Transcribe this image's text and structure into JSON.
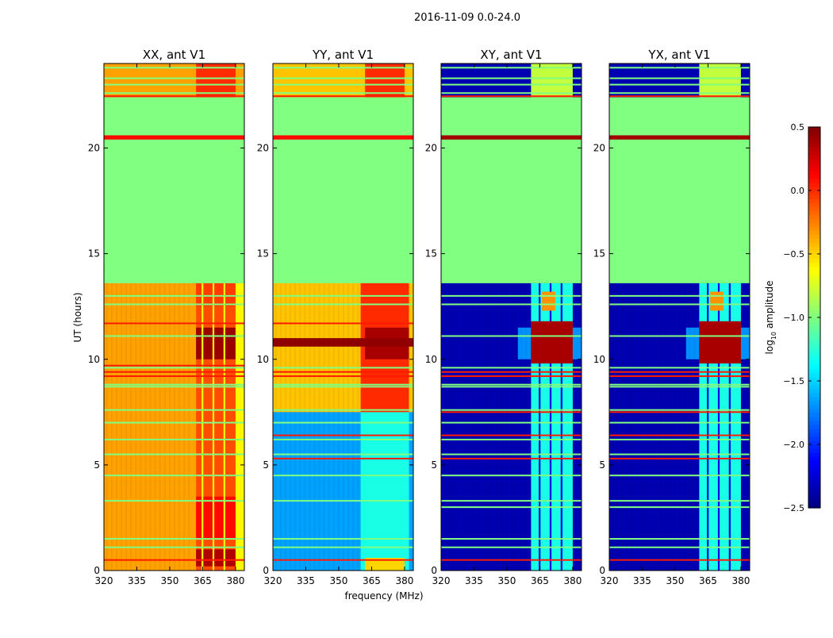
{
  "chart_data": {
    "type": "heatmap",
    "title": "2016-11-09 0.0-24.0",
    "xlabel": "frequency (MHz)",
    "ylabel": "UT (hours)",
    "xlim": [
      320,
      384
    ],
    "ylim": [
      0,
      24
    ],
    "xticks": [
      320,
      335,
      350,
      365,
      380
    ],
    "yticks": [
      0,
      5,
      10,
      15,
      20
    ],
    "colormap": "jet",
    "colorbar": {
      "label_main": "log",
      "label_sub": "10",
      "label_rest": " amplitude",
      "range": [
        -2.5,
        0.5
      ],
      "ticks": [
        0.5,
        0.0,
        -0.5,
        -1.0,
        -1.5,
        -2.0,
        -2.5
      ],
      "tick_labels": [
        "0.5",
        "0.0",
        "−0.5",
        "−1.0",
        "−1.5",
        "−2.0",
        "−2.5"
      ]
    },
    "flag_value": -1.0,
    "panels": [
      {
        "title": "XX, ant V1",
        "layers": [
          [
            0,
            24,
            320,
            384,
            -0.35
          ],
          [
            0,
            13.6,
            362,
            380,
            -0.1
          ],
          [
            0.2,
            1.0,
            362,
            380,
            0.35
          ],
          [
            1.5,
            3.5,
            362,
            380,
            0.1
          ],
          [
            10,
            11.5,
            362,
            380,
            0.42
          ],
          [
            12.5,
            13.6,
            362,
            380,
            -0.05
          ],
          [
            0,
            13.6,
            380,
            384,
            -0.6
          ],
          [
            0,
            13.6,
            364.5,
            365.3,
            -0.6
          ],
          [
            0,
            13.6,
            369.5,
            370.3,
            -0.6
          ],
          [
            0,
            13.6,
            374.5,
            375.3,
            -0.6
          ],
          [
            22.4,
            24,
            362,
            380,
            0.0
          ],
          [
            13.6,
            22.4,
            320,
            384,
            -1.0
          ],
          [
            20.4,
            20.6,
            320,
            384,
            0.1
          ]
        ],
        "green_lines": [
          1.1,
          1.5,
          3.3,
          4.5,
          5.5,
          6.2,
          7.0,
          7.6,
          8.7,
          8.8,
          9.6,
          11.1,
          12.6,
          13.0,
          22.6,
          23.0,
          23.3,
          23.8
        ],
        "red_lines": [
          0.5,
          9.2,
          9.4,
          9.7,
          11.7,
          22.45
        ]
      },
      {
        "title": "YY, ant V1",
        "layers": [
          [
            0,
            24,
            320,
            384,
            -0.45
          ],
          [
            0,
            7.5,
            320,
            384,
            -1.65
          ],
          [
            0,
            7.5,
            360,
            382,
            -1.3
          ],
          [
            0,
            0.6,
            362,
            380,
            -0.5
          ],
          [
            7.5,
            13.6,
            360,
            382,
            0.0
          ],
          [
            10,
            11.5,
            362,
            382,
            0.38
          ],
          [
            10.6,
            11.0,
            320,
            384,
            0.45
          ],
          [
            22.4,
            24,
            362,
            380,
            0.0
          ],
          [
            13.6,
            22.4,
            320,
            384,
            -1.0
          ],
          [
            20.4,
            20.6,
            320,
            384,
            0.1
          ]
        ],
        "green_lines": [
          1.1,
          1.5,
          3.3,
          4.5,
          5.5,
          6.2,
          7.0,
          7.6,
          8.7,
          8.8,
          9.6,
          12.6,
          13.0,
          22.6,
          23.0,
          23.3,
          23.8
        ],
        "red_lines": [
          0.5,
          5.3,
          6.4,
          9.2,
          9.4,
          11.7,
          22.45
        ]
      },
      {
        "title": "XY, ant V1",
        "layers": [
          [
            0,
            24,
            320,
            384,
            -2.35
          ],
          [
            0,
            13.6,
            361,
            380,
            -1.3
          ],
          [
            0,
            13.6,
            364.5,
            365.3,
            -2.2
          ],
          [
            0,
            13.6,
            369.5,
            370.3,
            -2.2
          ],
          [
            0,
            13.6,
            374.5,
            375.3,
            -2.2
          ],
          [
            10,
            11.5,
            355,
            361,
            -1.7
          ],
          [
            10,
            11.5,
            380,
            384,
            -1.7
          ],
          [
            9.8,
            11.8,
            361,
            380,
            0.38
          ],
          [
            12.3,
            13.2,
            366,
            372,
            -0.3
          ],
          [
            22.4,
            24,
            361,
            380,
            -0.8
          ],
          [
            13.6,
            22.4,
            320,
            384,
            -1.0
          ],
          [
            20.4,
            20.6,
            320,
            384,
            0.4
          ]
        ],
        "green_lines": [
          1.1,
          1.5,
          3.0,
          3.3,
          4.5,
          5.5,
          6.2,
          7.0,
          7.6,
          8.7,
          8.8,
          9.6,
          11.1,
          12.6,
          13.0,
          22.6,
          23.0,
          23.3,
          23.8
        ],
        "red_lines": [
          0.5,
          5.3,
          6.4,
          7.5,
          9.2,
          9.4,
          22.45
        ]
      },
      {
        "title": "YX, ant V1",
        "layers": [
          [
            0,
            24,
            320,
            384,
            -2.35
          ],
          [
            0,
            13.6,
            361,
            380,
            -1.3
          ],
          [
            0,
            13.6,
            364.5,
            365.3,
            -2.2
          ],
          [
            0,
            13.6,
            369.5,
            370.3,
            -2.2
          ],
          [
            0,
            13.6,
            374.5,
            375.3,
            -2.2
          ],
          [
            10,
            11.5,
            355,
            361,
            -1.7
          ],
          [
            10,
            11.5,
            380,
            384,
            -1.7
          ],
          [
            9.8,
            11.8,
            361,
            380,
            0.38
          ],
          [
            12.3,
            13.2,
            366,
            372,
            -0.3
          ],
          [
            22.4,
            24,
            361,
            380,
            -0.8
          ],
          [
            13.6,
            22.4,
            320,
            384,
            -1.0
          ],
          [
            20.4,
            20.6,
            320,
            384,
            0.4
          ]
        ],
        "green_lines": [
          1.1,
          1.5,
          3.0,
          3.3,
          4.5,
          5.5,
          6.2,
          7.0,
          7.6,
          8.7,
          8.8,
          9.6,
          11.1,
          12.6,
          13.0,
          22.6,
          23.0,
          23.3,
          23.8
        ],
        "red_lines": [
          0.5,
          5.3,
          6.4,
          7.5,
          9.2,
          9.4,
          22.45
        ]
      }
    ]
  }
}
